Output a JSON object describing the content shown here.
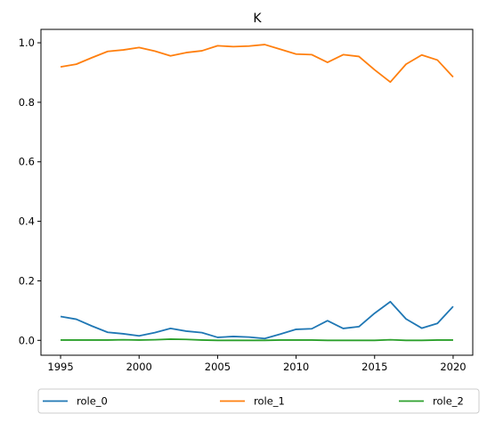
{
  "chart_data": {
    "type": "line",
    "title": "K",
    "xlabel": "",
    "ylabel": "",
    "xlim": [
      1993.75,
      2021.25
    ],
    "ylim": [
      -0.05,
      1.045
    ],
    "xticks": [
      1995,
      2000,
      2005,
      2010,
      2015,
      2020
    ],
    "xtick_labels": [
      "1995",
      "2000",
      "2005",
      "2010",
      "2015",
      "2020"
    ],
    "yticks": [
      0.0,
      0.2,
      0.4,
      0.6,
      0.8,
      1.0
    ],
    "ytick_labels": [
      "0.0",
      "0.2",
      "0.4",
      "0.6",
      "0.8",
      "1.0"
    ],
    "grid": false,
    "legend_position": "below plot, horizontal",
    "x": [
      1995,
      1996,
      1997,
      1998,
      1999,
      2000,
      2001,
      2002,
      2003,
      2004,
      2005,
      2006,
      2007,
      2008,
      2009,
      2010,
      2011,
      2012,
      2013,
      2014,
      2015,
      2016,
      2017,
      2018,
      2019,
      2020
    ],
    "series": [
      {
        "name": "role_0",
        "color": "#1f77b4",
        "values": [
          0.08,
          0.071,
          0.048,
          0.027,
          0.022,
          0.015,
          0.026,
          0.04,
          0.031,
          0.026,
          0.01,
          0.013,
          0.011,
          0.006,
          0.021,
          0.037,
          0.039,
          0.066,
          0.04,
          0.046,
          0.091,
          0.13,
          0.072,
          0.041,
          0.057,
          0.114
        ]
      },
      {
        "name": "role_1",
        "color": "#ff7f0e",
        "values": [
          0.919,
          0.928,
          0.95,
          0.971,
          0.976,
          0.984,
          0.972,
          0.956,
          0.967,
          0.973,
          0.99,
          0.987,
          0.989,
          0.994,
          0.978,
          0.962,
          0.96,
          0.934,
          0.96,
          0.954,
          0.909,
          0.868,
          0.928,
          0.959,
          0.942,
          0.885
        ]
      },
      {
        "name": "role_2",
        "color": "#2ca02c",
        "values": [
          0.001,
          0.001,
          0.001,
          0.001,
          0.002,
          0.001,
          0.002,
          0.004,
          0.003,
          0.001,
          0.0,
          0.0,
          0.0,
          0.0,
          0.001,
          0.001,
          0.001,
          0.0,
          0.0,
          0.0,
          0.0,
          0.002,
          0.0,
          0.0,
          0.001,
          0.001
        ]
      }
    ]
  }
}
